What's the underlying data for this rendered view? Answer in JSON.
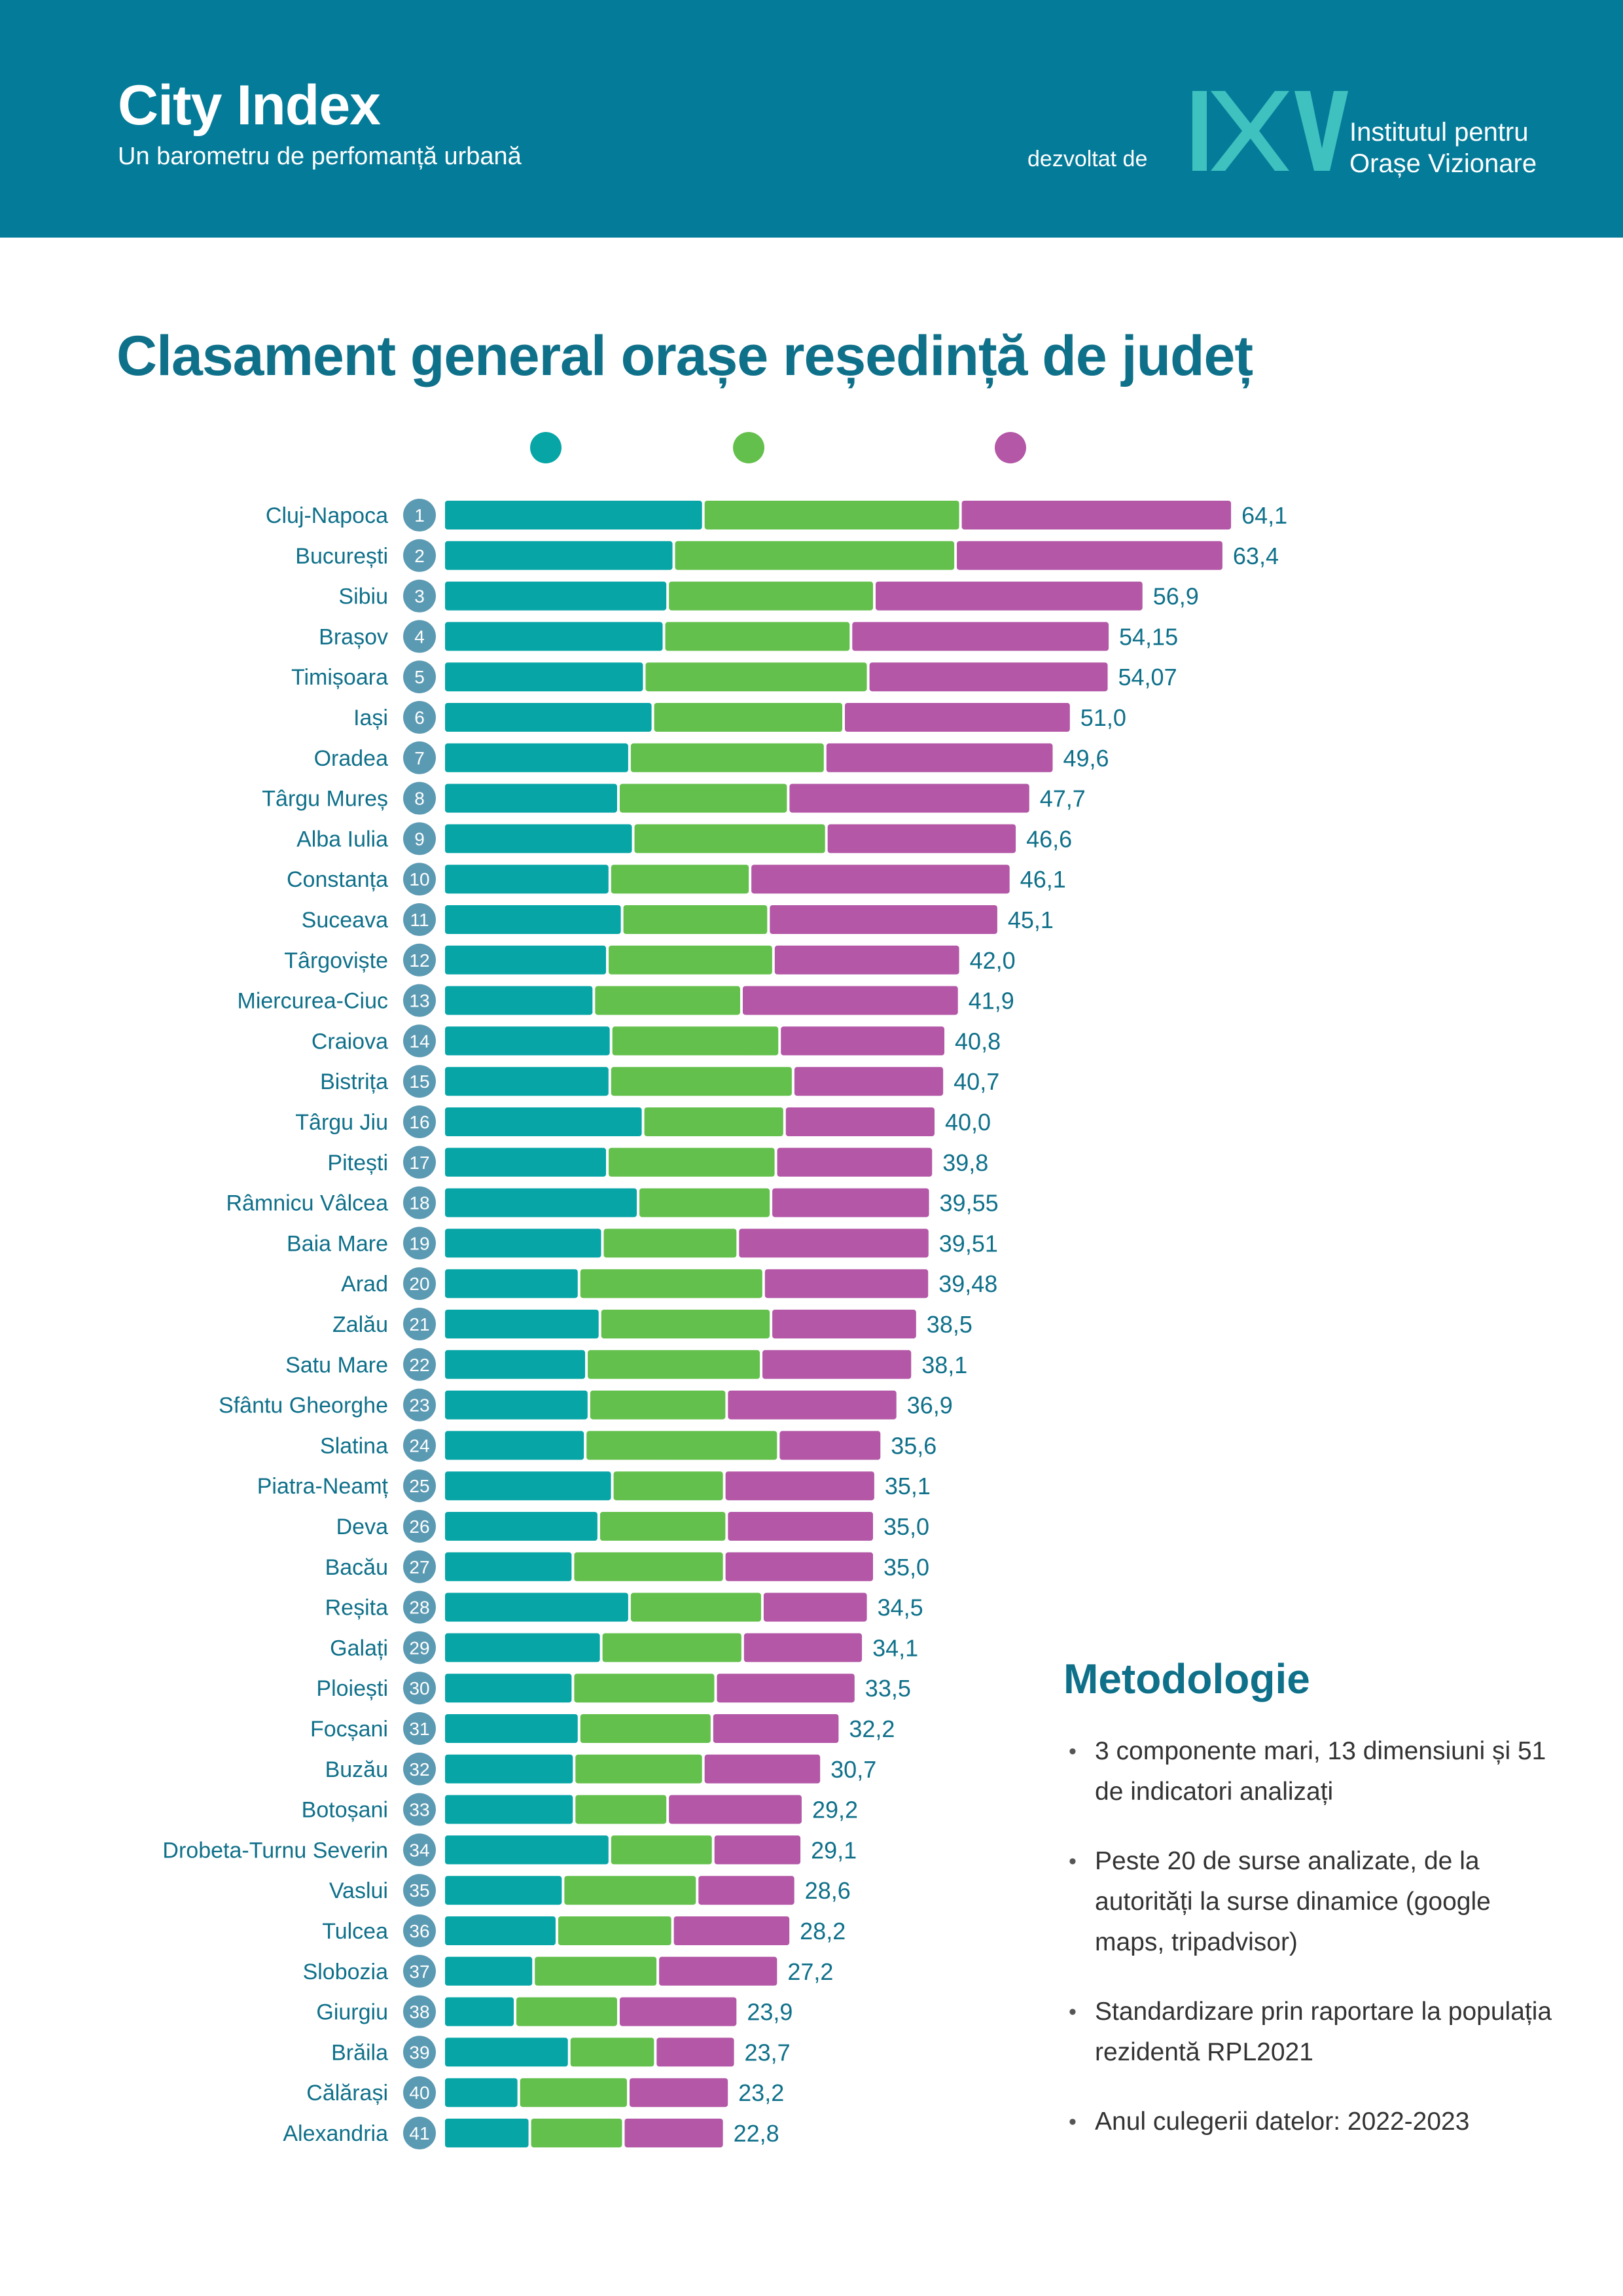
{
  "header": {
    "title": "City Index",
    "subtitle": "Un barometru de perfomanță urbană",
    "developed_by": "dezvoltat de",
    "institute_line1": "Institutul pentru",
    "institute_line2": "Orașe Vizionare",
    "logo_icon": "iov-logo",
    "color": "#047b99"
  },
  "page_title": "Clasament general orașe reședință de județ",
  "colors": {
    "series1": "#07a5a6",
    "series2": "#64c04c",
    "series3": "#b357a6",
    "label": "#0f708a",
    "rank_badge": "#5b9ab3"
  },
  "chart_data": {
    "type": "bar",
    "orientation": "horizontal",
    "stacked": true,
    "legend_markers": [
      "#07a5a6",
      "#64c04c",
      "#b357a6"
    ],
    "categories": [
      "Cluj-Napoca",
      "București",
      "Sibiu",
      "Brașov",
      "Timișoara",
      "Iași",
      "Oradea",
      "Târgu Mureș",
      "Alba Iulia",
      "Constanța",
      "Suceava",
      "Târgoviște",
      "Miercurea-Ciuc",
      "Craiova",
      "Bistrița",
      "Târgu Jiu",
      "Pitești",
      "Râmnicu Vâlcea",
      "Baia Mare",
      "Arad",
      "Zalău",
      "Satu Mare",
      "Sfântu Gheorghe",
      "Slatina",
      "Piatra-Neamț",
      "Deva",
      "Bacău",
      "Reșita",
      "Galați",
      "Ploiești",
      "Focșani",
      "Buzău",
      "Botoșani",
      "Drobeta-Turnu Severin",
      "Vaslui",
      "Tulcea",
      "Slobozia",
      "Giurgiu",
      "Brăila",
      "Călărași",
      "Alexandria"
    ],
    "ranks": [
      "1",
      "2",
      "3",
      "4",
      "5",
      "6",
      "7",
      "8",
      "9",
      "10",
      "11",
      "12",
      "13",
      "14",
      "15",
      "16",
      "17",
      "18",
      "19",
      "20",
      "21",
      "22",
      "23",
      "24",
      "25",
      "26",
      "27",
      "28",
      "29",
      "30",
      "31",
      "32",
      "33",
      "34",
      "35",
      "36",
      "37",
      "38",
      "39",
      "40",
      "41"
    ],
    "totals": [
      "64,1",
      "63,4",
      "56,9",
      "54,15",
      "54,07",
      "51,0",
      "49,6",
      "47,7",
      "46,6",
      "46,1",
      "45,1",
      "42,0",
      "41,9",
      "40,8",
      "40,7",
      "40,0",
      "39,8",
      "39,55",
      "39,51",
      "39,48",
      "38,5",
      "38,1",
      "36,9",
      "35,6",
      "35,1",
      "35,0",
      "35,0",
      "34,5",
      "34,1",
      "33,5",
      "32,2",
      "30,7",
      "29,2",
      "29,1",
      "28,6",
      "28,2",
      "27,2",
      "23,9",
      "23,7",
      "23,2",
      "22,8"
    ],
    "series": [
      {
        "values": [
          21.1,
          18.7,
          18.2,
          17.9,
          16.3,
          17.0,
          15.1,
          14.2,
          15.4,
          13.5,
          14.5,
          13.3,
          12.2,
          13.6,
          13.5,
          16.2,
          13.3,
          15.8,
          12.9,
          11.0,
          12.7,
          11.6,
          11.8,
          11.5,
          13.7,
          12.6,
          10.5,
          15.1,
          12.8,
          10.5,
          11.0,
          10.6,
          10.6,
          13.5,
          9.7,
          9.2,
          7.3,
          5.8,
          10.2,
          6.1,
          7.0
        ]
      },
      {
        "values": [
          20.9,
          22.9,
          16.8,
          15.2,
          18.2,
          15.5,
          15.9,
          13.8,
          15.7,
          11.4,
          11.9,
          13.5,
          12.0,
          13.7,
          14.9,
          11.5,
          13.7,
          10.8,
          11.0,
          15.0,
          13.9,
          14.2,
          11.2,
          15.7,
          9.1,
          10.4,
          12.3,
          10.8,
          11.5,
          11.6,
          10.8,
          10.5,
          7.6,
          8.4,
          10.9,
          9.4,
          10.1,
          8.4,
          7.0,
          8.9,
          7.6
        ]
      },
      {
        "values": [
          22.1,
          21.8,
          21.9,
          21.05,
          19.57,
          18.5,
          18.6,
          19.7,
          15.5,
          21.2,
          18.7,
          15.2,
          17.7,
          13.5,
          12.3,
          12.3,
          12.8,
          12.95,
          15.61,
          13.48,
          11.9,
          12.3,
          13.9,
          8.4,
          12.3,
          12.0,
          12.2,
          8.6,
          9.8,
          11.4,
          10.4,
          9.6,
          11.0,
          7.2,
          8.0,
          9.6,
          9.8,
          9.7,
          6.5,
          8.2,
          8.2
        ]
      }
    ]
  },
  "methodology": {
    "title": "Metodologie",
    "items": [
      "3 componente mari, 13 dimensiuni și 51 de indicatori analizați",
      "Peste 20 de surse analizate, de la autorități la surse dinamice (google maps, tripadvisor)",
      "Standardizare prin raportare la populația rezidentă RPL2021",
      "Anul culegerii datelor: 2022-2023"
    ]
  }
}
